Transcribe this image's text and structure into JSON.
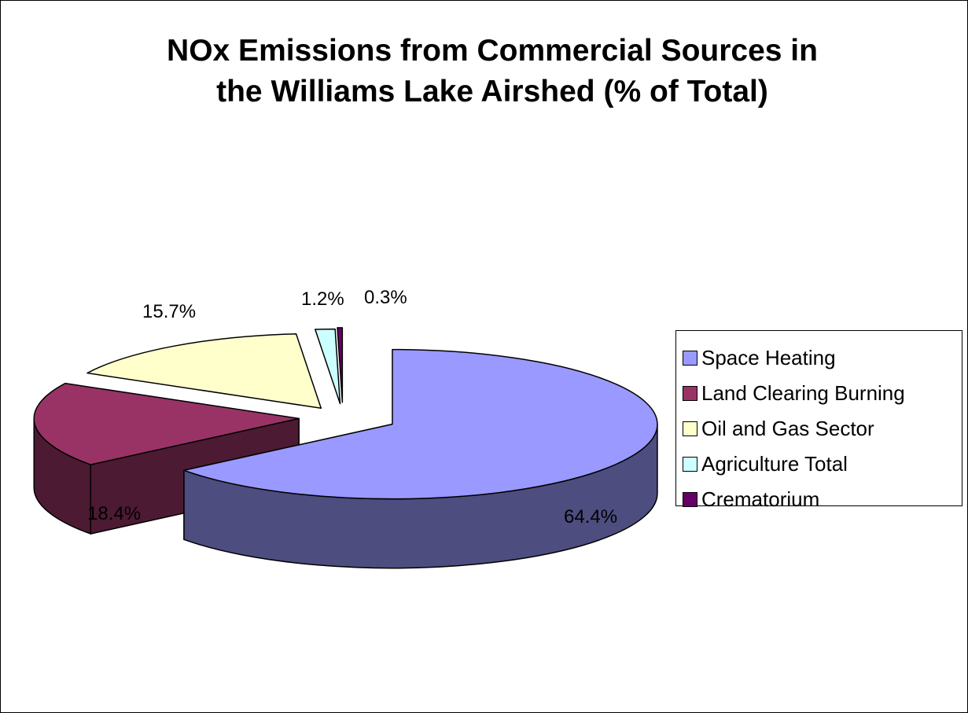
{
  "chart_data": {
    "type": "pie",
    "variant": "3d-exploded",
    "title_lines": [
      "NOx Emissions from Commercial Sources in",
      "the Williams Lake Airshed (% of Total)"
    ],
    "categories": [
      "Space Heating",
      "Land Clearing Burning",
      "Oil and Gas Sector",
      "Agriculture Total",
      "Crematorium"
    ],
    "values": [
      64.4,
      18.4,
      15.7,
      1.2,
      0.3
    ],
    "labels": [
      "64.4%",
      "18.4%",
      "15.7%",
      "1.2%",
      "0.3%"
    ],
    "colors": [
      "#9999ff",
      "#993366",
      "#ffffcc",
      "#ccffff",
      "#660066"
    ],
    "side_colors": [
      "#4d4d80",
      "#4d1a33",
      "#808066",
      "#668080",
      "#330033"
    ],
    "legend_position": "right"
  }
}
